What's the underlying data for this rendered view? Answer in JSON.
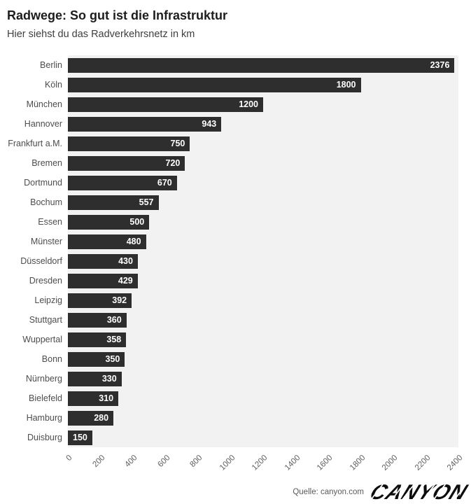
{
  "header": {
    "title": "Radwege: So gut ist die Infrastruktur",
    "subtitle": "Hier siehst du das Radverkehrsnetz in km"
  },
  "chart_data": {
    "type": "bar",
    "orientation": "horizontal",
    "title": "Radwege: So gut ist die Infrastruktur",
    "subtitle": "Hier siehst du das Radverkehrsnetz in km",
    "xlabel": "",
    "ylabel": "",
    "unit": "km",
    "categories": [
      "Berlin",
      "Köln",
      "München",
      "Hannover",
      "Frankfurt a.M.",
      "Bremen",
      "Dortmund",
      "Bochum",
      "Essen",
      "Münster",
      "Düsseldorf",
      "Dresden",
      "Leipzig",
      "Stuttgart",
      "Wuppertal",
      "Bonn",
      "Nürnberg",
      "Bielefeld",
      "Hamburg",
      "Duisburg"
    ],
    "values": [
      2376,
      1800,
      1200,
      943,
      750,
      720,
      670,
      557,
      500,
      480,
      430,
      429,
      392,
      360,
      358,
      350,
      330,
      310,
      280,
      150
    ],
    "xlim": [
      0,
      2400
    ],
    "x_ticks": [
      0,
      200,
      400,
      600,
      800,
      1000,
      1200,
      1400,
      1600,
      1800,
      2000,
      2200,
      2400
    ],
    "tick_rotation_deg": 45,
    "grid": false,
    "legend": "none",
    "value_label_position": "inside-end",
    "bar_color": "#2e2e2e",
    "plot_background": "#f2f2f2",
    "value_label_color": "#ffffff",
    "category_label_color": "#4d4d4d"
  },
  "footer": {
    "source": "Quelle: canyon.com",
    "logo_text": "CANYON"
  },
  "colors": {
    "page_background": "#ffffff",
    "title": "#1d1d1d",
    "subtitle": "#3e3e3e",
    "tick_label": "#5f5f5f",
    "logo": "#0d0d0d"
  }
}
